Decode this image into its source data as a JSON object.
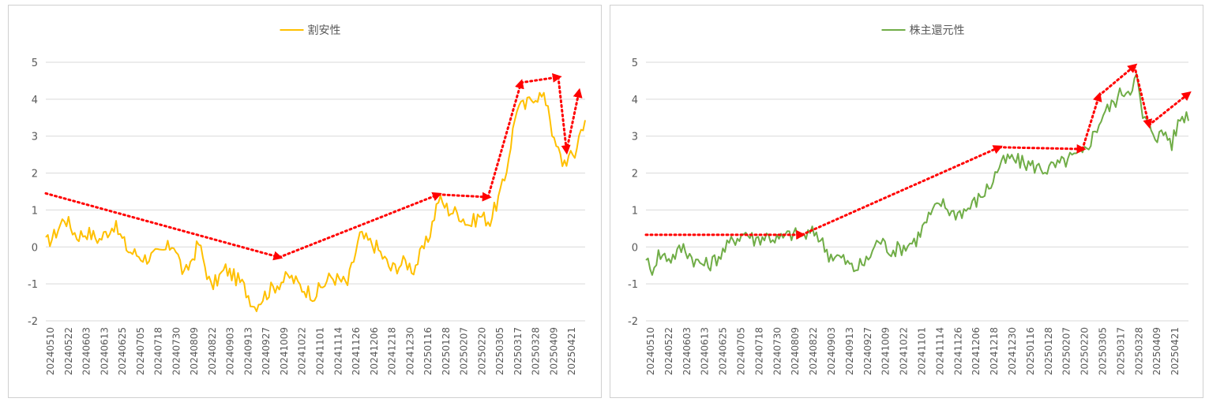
{
  "chart_data": [
    {
      "type": "line",
      "title": "",
      "legend": "top-center",
      "series": [
        {
          "name": "割安性",
          "color": "#FFC000"
        }
      ],
      "ylim": [
        -2,
        5
      ],
      "yticks": [
        "5",
        "4",
        "3",
        "2",
        "1",
        "0",
        "-1",
        "-2"
      ],
      "xticks": [
        "20240510",
        "20240522",
        "20240603",
        "20240613",
        "20240625",
        "20240705",
        "20240718",
        "20240730",
        "20240809",
        "20240822",
        "20240903",
        "20240913",
        "20240927",
        "20241009",
        "20241022",
        "20241101",
        "20241114",
        "20241126",
        "20241206",
        "20241218",
        "20241230",
        "20250116",
        "20250128",
        "20250207",
        "20250220",
        "20250305",
        "20250317",
        "20250328",
        "20250409",
        "20250421"
      ],
      "anchors": [
        [
          0,
          0.1
        ],
        [
          4,
          0.3
        ],
        [
          9,
          0.8
        ],
        [
          15,
          0.3
        ],
        [
          20,
          0.4
        ],
        [
          26,
          0.2
        ],
        [
          33,
          0.6
        ],
        [
          40,
          -0.1
        ],
        [
          48,
          -0.3
        ],
        [
          55,
          -0.2
        ],
        [
          62,
          0.1
        ],
        [
          67,
          -0.8
        ],
        [
          74,
          0.1
        ],
        [
          80,
          -1.1
        ],
        [
          87,
          -0.6
        ],
        [
          95,
          -1.0
        ],
        [
          101,
          -1.6
        ],
        [
          106,
          -1.3
        ],
        [
          112,
          -1.0
        ],
        [
          118,
          -0.8
        ],
        [
          124,
          -1.1
        ],
        [
          130,
          -1.3
        ],
        [
          138,
          -0.8
        ],
        [
          146,
          -1.0
        ],
        [
          152,
          0.3
        ],
        [
          160,
          0.0
        ],
        [
          167,
          -0.6
        ],
        [
          174,
          -0.4
        ],
        [
          178,
          -0.6
        ],
        [
          185,
          0.2
        ],
        [
          190,
          1.3
        ],
        [
          195,
          1.0
        ],
        [
          200,
          0.9
        ],
        [
          205,
          0.6
        ],
        [
          210,
          0.85
        ],
        [
          215,
          0.7
        ],
        [
          219,
          1.3
        ],
        [
          222,
          1.8
        ],
        [
          225,
          2.8
        ],
        [
          228,
          3.8
        ],
        [
          232,
          3.8
        ],
        [
          236,
          4.1
        ],
        [
          239,
          4.1
        ],
        [
          243,
          3.9
        ],
        [
          246,
          2.8
        ],
        [
          248,
          2.6
        ],
        [
          250,
          2.3
        ],
        [
          253,
          2.4
        ],
        [
          256,
          2.5
        ],
        [
          258,
          3.0
        ],
        [
          261,
          3.5
        ]
      ],
      "arrows": [
        [
          [
            0,
            1.45
          ],
          [
            113,
            -0.28
          ]
        ],
        [
          [
            113,
            -0.28
          ],
          [
            190,
            1.42
          ]
        ],
        [
          [
            190,
            1.42
          ],
          [
            214,
            1.35
          ]
        ],
        [
          [
            214,
            1.35
          ],
          [
            230,
            4.45
          ]
        ],
        [
          [
            230,
            4.45
          ],
          [
            248,
            4.6
          ]
        ],
        [
          [
            248,
            4.6
          ],
          [
            252,
            2.6
          ]
        ],
        [
          [
            252,
            2.6
          ],
          [
            258,
            4.2
          ]
        ]
      ]
    },
    {
      "type": "line",
      "title": "",
      "legend": "top-center",
      "series": [
        {
          "name": "株主還元性",
          "color": "#70AD47"
        }
      ],
      "ylim": [
        -2,
        5
      ],
      "yticks": [
        "5",
        "4",
        "3",
        "2",
        "1",
        "0",
        "-1",
        "-2"
      ],
      "xticks": [
        "20240510",
        "20240522",
        "20240603",
        "20240613",
        "20240625",
        "20240705",
        "20240718",
        "20240730",
        "20240809",
        "20240822",
        "20240903",
        "20240913",
        "20240927",
        "20241009",
        "20241022",
        "20241101",
        "20241114",
        "20241126",
        "20241206",
        "20241218",
        "20241230",
        "20250116",
        "20250128",
        "20250207",
        "20250220",
        "20250305",
        "20250317",
        "20250328",
        "20250409",
        "20250421"
      ],
      "anchors": [
        [
          0,
          -0.2
        ],
        [
          2,
          -0.7
        ],
        [
          6,
          -0.2
        ],
        [
          12,
          -0.3
        ],
        [
          18,
          0.0
        ],
        [
          24,
          -0.4
        ],
        [
          30,
          -0.5
        ],
        [
          36,
          -0.2
        ],
        [
          42,
          0.2
        ],
        [
          48,
          0.4
        ],
        [
          52,
          0.2
        ],
        [
          58,
          0.3
        ],
        [
          64,
          0.2
        ],
        [
          70,
          0.35
        ],
        [
          76,
          0.3
        ],
        [
          82,
          0.4
        ],
        [
          88,
          -0.2
        ],
        [
          94,
          -0.3
        ],
        [
          100,
          -0.6
        ],
        [
          106,
          -0.4
        ],
        [
          112,
          0.2
        ],
        [
          118,
          -0.1
        ],
        [
          124,
          0.0
        ],
        [
          130,
          0.2
        ],
        [
          136,
          0.8
        ],
        [
          142,
          1.2
        ],
        [
          148,
          0.9
        ],
        [
          154,
          1.0
        ],
        [
          160,
          1.3
        ],
        [
          166,
          1.7
        ],
        [
          170,
          2.2
        ],
        [
          175,
          2.4
        ],
        [
          180,
          2.3
        ],
        [
          186,
          2.2
        ],
        [
          192,
          2.1
        ],
        [
          198,
          2.2
        ],
        [
          204,
          2.4
        ],
        [
          210,
          2.5
        ],
        [
          215,
          3.0
        ],
        [
          220,
          3.6
        ],
        [
          225,
          3.9
        ],
        [
          229,
          4.2
        ],
        [
          233,
          4.3
        ],
        [
          236,
          4.6
        ],
        [
          239,
          3.5
        ],
        [
          242,
          3.3
        ],
        [
          246,
          3.0
        ],
        [
          250,
          3.1
        ],
        [
          253,
          2.8
        ],
        [
          257,
          3.5
        ],
        [
          261,
          3.6
        ]
      ],
      "arrows": [
        [
          [
            0,
            0.33
          ],
          [
            75,
            0.33
          ]
        ],
        [
          [
            75,
            0.33
          ],
          [
            170,
            2.7
          ]
        ],
        [
          [
            170,
            2.7
          ],
          [
            210,
            2.65
          ]
        ],
        [
          [
            210,
            2.65
          ],
          [
            218,
            4.1
          ]
        ],
        [
          [
            218,
            4.1
          ],
          [
            235,
            4.9
          ]
        ],
        [
          [
            235,
            4.9
          ],
          [
            242,
            3.3
          ]
        ],
        [
          [
            242,
            3.3
          ],
          [
            261,
            4.15
          ]
        ]
      ]
    }
  ]
}
